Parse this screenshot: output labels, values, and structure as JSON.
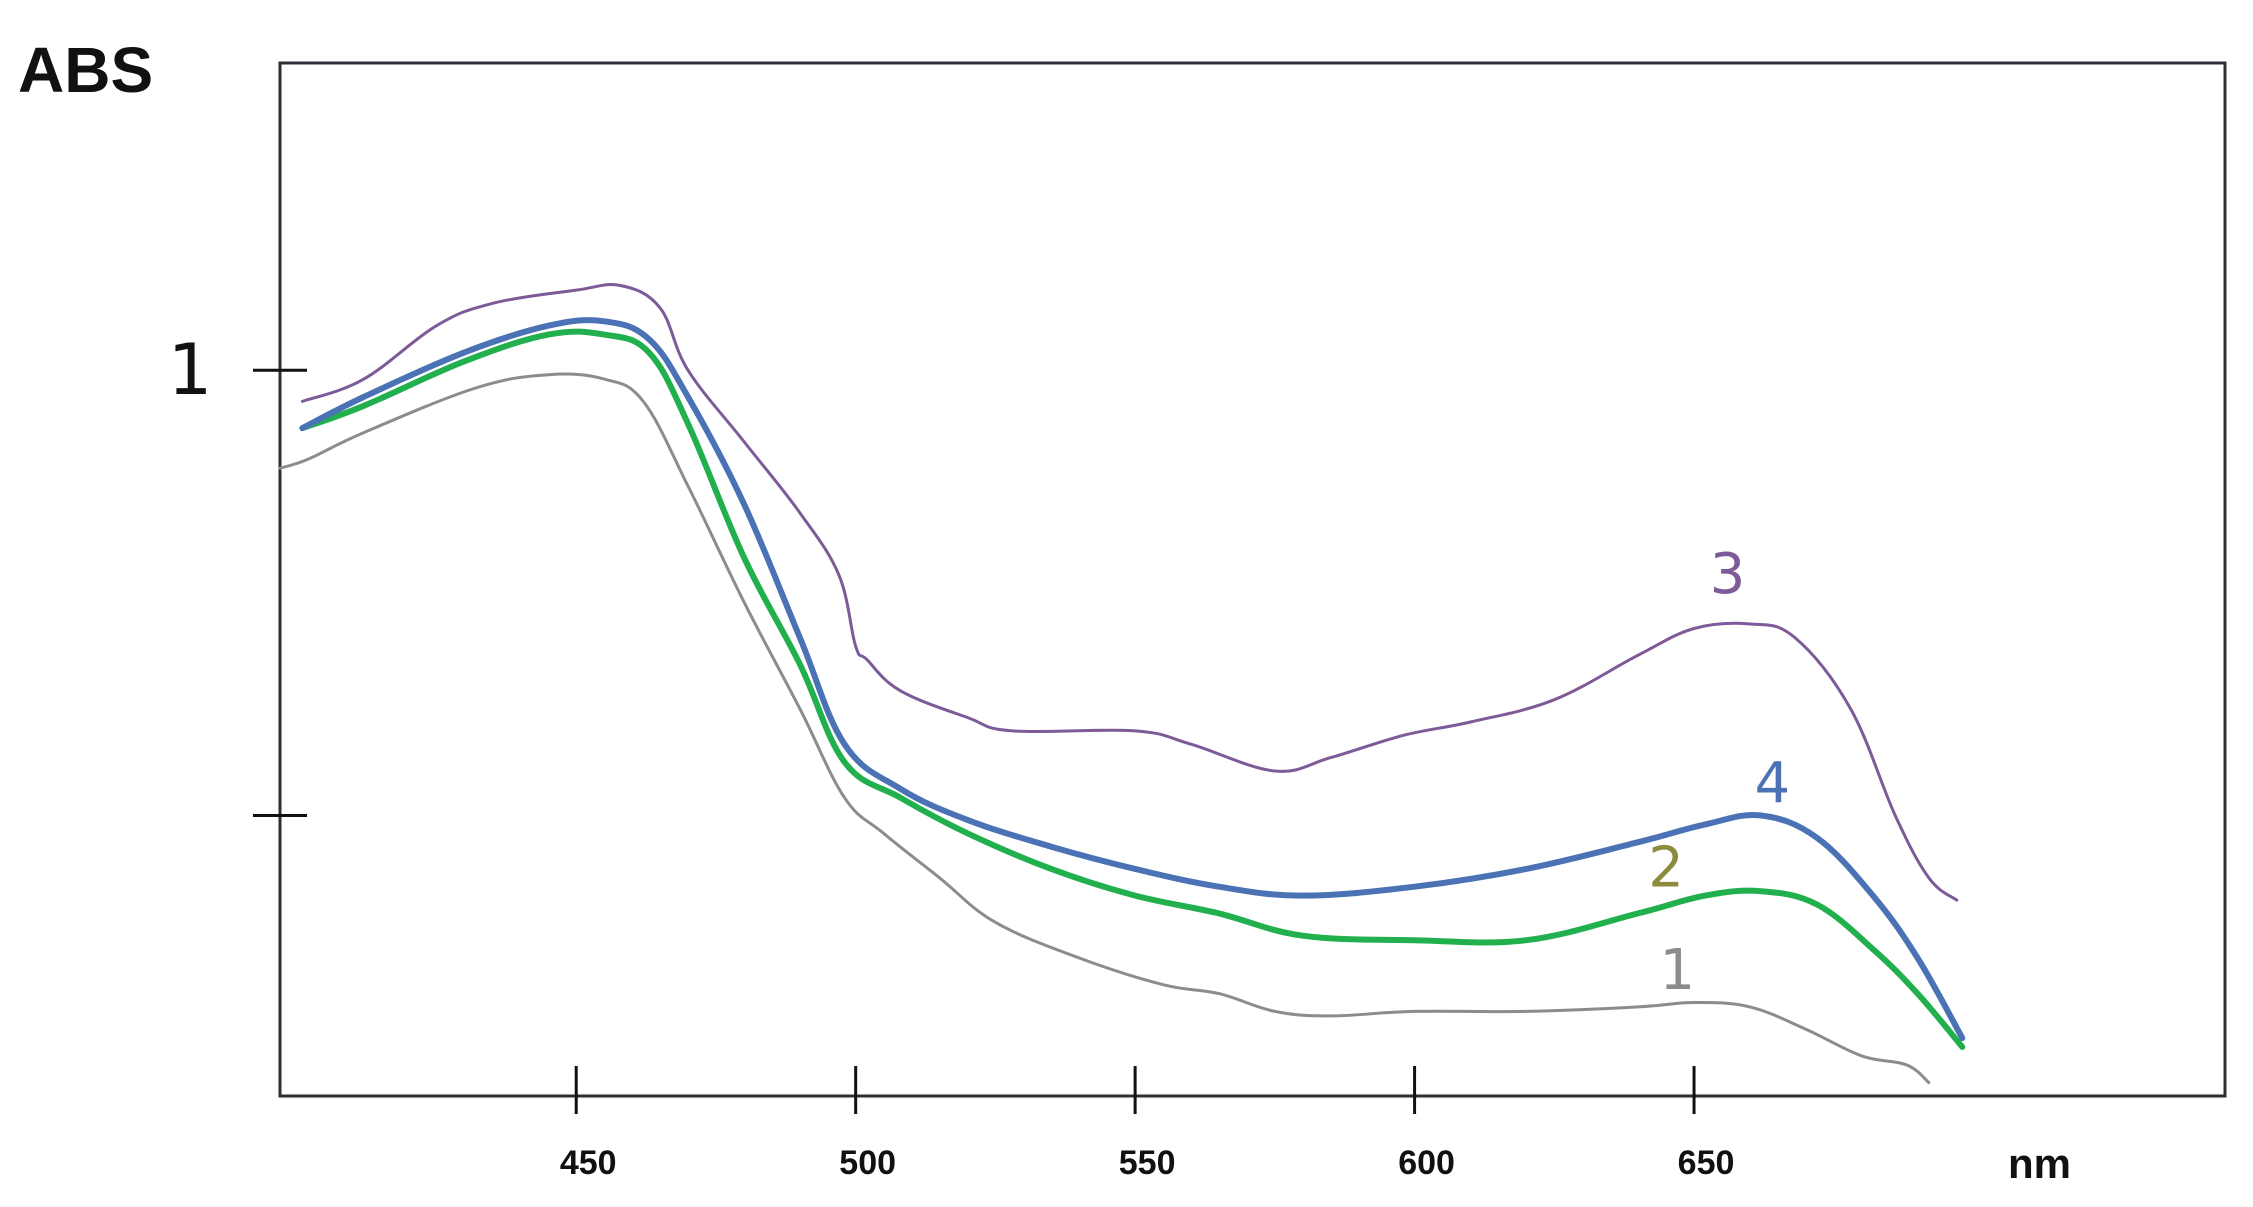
{
  "chart_data": {
    "type": "line",
    "title": "",
    "ylabel": "ABS",
    "xlabel": "nm",
    "xlim": [
      397,
      745
    ],
    "ylim": [
      0.185,
      1.345
    ],
    "grid": false,
    "legend": "none",
    "x_ticks": [
      450,
      500,
      550,
      600,
      650
    ],
    "x_tick_labels": [
      "450",
      "500",
      "550",
      "600",
      "650"
    ],
    "y_ticks": [
      1,
      0.5
    ],
    "y_tick_labels": [
      "1",
      ""
    ],
    "series": [
      {
        "name": "1",
        "color": "#8c8c8c",
        "width": 3,
        "points": [
          [
            397,
            0.89
          ],
          [
            402,
            0.9
          ],
          [
            412,
            0.93
          ],
          [
            432,
            0.98
          ],
          [
            445,
            0.995
          ],
          [
            455,
            0.99
          ],
          [
            462,
            0.965
          ],
          [
            470,
            0.87
          ],
          [
            480,
            0.74
          ],
          [
            490,
            0.62
          ],
          [
            498,
            0.52
          ],
          [
            505,
            0.48
          ],
          [
            515,
            0.43
          ],
          [
            525,
            0.38
          ],
          [
            540,
            0.34
          ],
          [
            555,
            0.31
          ],
          [
            565,
            0.3
          ],
          [
            575,
            0.28
          ],
          [
            585,
            0.275
          ],
          [
            600,
            0.28
          ],
          [
            620,
            0.28
          ],
          [
            640,
            0.285
          ],
          [
            650,
            0.29
          ],
          [
            660,
            0.285
          ],
          [
            670,
            0.26
          ],
          [
            680,
            0.23
          ],
          [
            688,
            0.22
          ],
          [
            692,
            0.2
          ]
        ]
      },
      {
        "name": "2",
        "color": "#21b04d",
        "width": 6,
        "points": [
          [
            401,
            0.935
          ],
          [
            412,
            0.96
          ],
          [
            430,
            1.01
          ],
          [
            445,
            1.04
          ],
          [
            455,
            1.04
          ],
          [
            463,
            1.02
          ],
          [
            470,
            0.94
          ],
          [
            480,
            0.79
          ],
          [
            490,
            0.67
          ],
          [
            498,
            0.56
          ],
          [
            508,
            0.52
          ],
          [
            520,
            0.48
          ],
          [
            535,
            0.44
          ],
          [
            550,
            0.41
          ],
          [
            565,
            0.39
          ],
          [
            580,
            0.365
          ],
          [
            600,
            0.36
          ],
          [
            620,
            0.36
          ],
          [
            640,
            0.39
          ],
          [
            652,
            0.41
          ],
          [
            662,
            0.415
          ],
          [
            672,
            0.4
          ],
          [
            682,
            0.35
          ],
          [
            690,
            0.3
          ],
          [
            698,
            0.24
          ]
        ]
      },
      {
        "name": "3",
        "color": "#7d5a98",
        "width": 3,
        "points": [
          [
            401,
            0.965
          ],
          [
            412,
            0.99
          ],
          [
            425,
            1.05
          ],
          [
            435,
            1.075
          ],
          [
            450,
            1.09
          ],
          [
            458,
            1.095
          ],
          [
            465,
            1.07
          ],
          [
            470,
            1.0
          ],
          [
            480,
            0.92
          ],
          [
            490,
            0.84
          ],
          [
            497,
            0.77
          ],
          [
            500,
            0.69
          ],
          [
            502,
            0.675
          ],
          [
            508,
            0.64
          ],
          [
            520,
            0.61
          ],
          [
            528,
            0.595
          ],
          [
            550,
            0.595
          ],
          [
            560,
            0.58
          ],
          [
            575,
            0.55
          ],
          [
            585,
            0.565
          ],
          [
            598,
            0.59
          ],
          [
            610,
            0.605
          ],
          [
            625,
            0.63
          ],
          [
            640,
            0.68
          ],
          [
            650,
            0.71
          ],
          [
            660,
            0.715
          ],
          [
            668,
            0.7
          ],
          [
            678,
            0.62
          ],
          [
            686,
            0.5
          ],
          [
            692,
            0.43
          ],
          [
            697,
            0.405
          ]
        ]
      },
      {
        "name": "4",
        "color": "#4a72b5",
        "width": 6,
        "points": [
          [
            401,
            0.935
          ],
          [
            412,
            0.97
          ],
          [
            430,
            1.02
          ],
          [
            445,
            1.05
          ],
          [
            455,
            1.055
          ],
          [
            463,
            1.035
          ],
          [
            470,
            0.97
          ],
          [
            480,
            0.85
          ],
          [
            490,
            0.7
          ],
          [
            498,
            0.58
          ],
          [
            508,
            0.53
          ],
          [
            520,
            0.495
          ],
          [
            535,
            0.465
          ],
          [
            550,
            0.44
          ],
          [
            565,
            0.42
          ],
          [
            580,
            0.41
          ],
          [
            600,
            0.42
          ],
          [
            620,
            0.44
          ],
          [
            640,
            0.47
          ],
          [
            652,
            0.49
          ],
          [
            662,
            0.5
          ],
          [
            672,
            0.475
          ],
          [
            682,
            0.41
          ],
          [
            690,
            0.34
          ],
          [
            698,
            0.25
          ]
        ]
      }
    ],
    "annotations": [
      {
        "text": "1",
        "x": 647,
        "y": 0.305,
        "color": "#8c8c8c"
      },
      {
        "text": "2",
        "x": 645,
        "y": 0.42,
        "color": "#8c8c3c"
      },
      {
        "text": "3",
        "x": 656,
        "y": 0.75,
        "color": "#7d5a98"
      },
      {
        "text": "4",
        "x": 664,
        "y": 0.515,
        "color": "#4a72b5"
      }
    ]
  }
}
